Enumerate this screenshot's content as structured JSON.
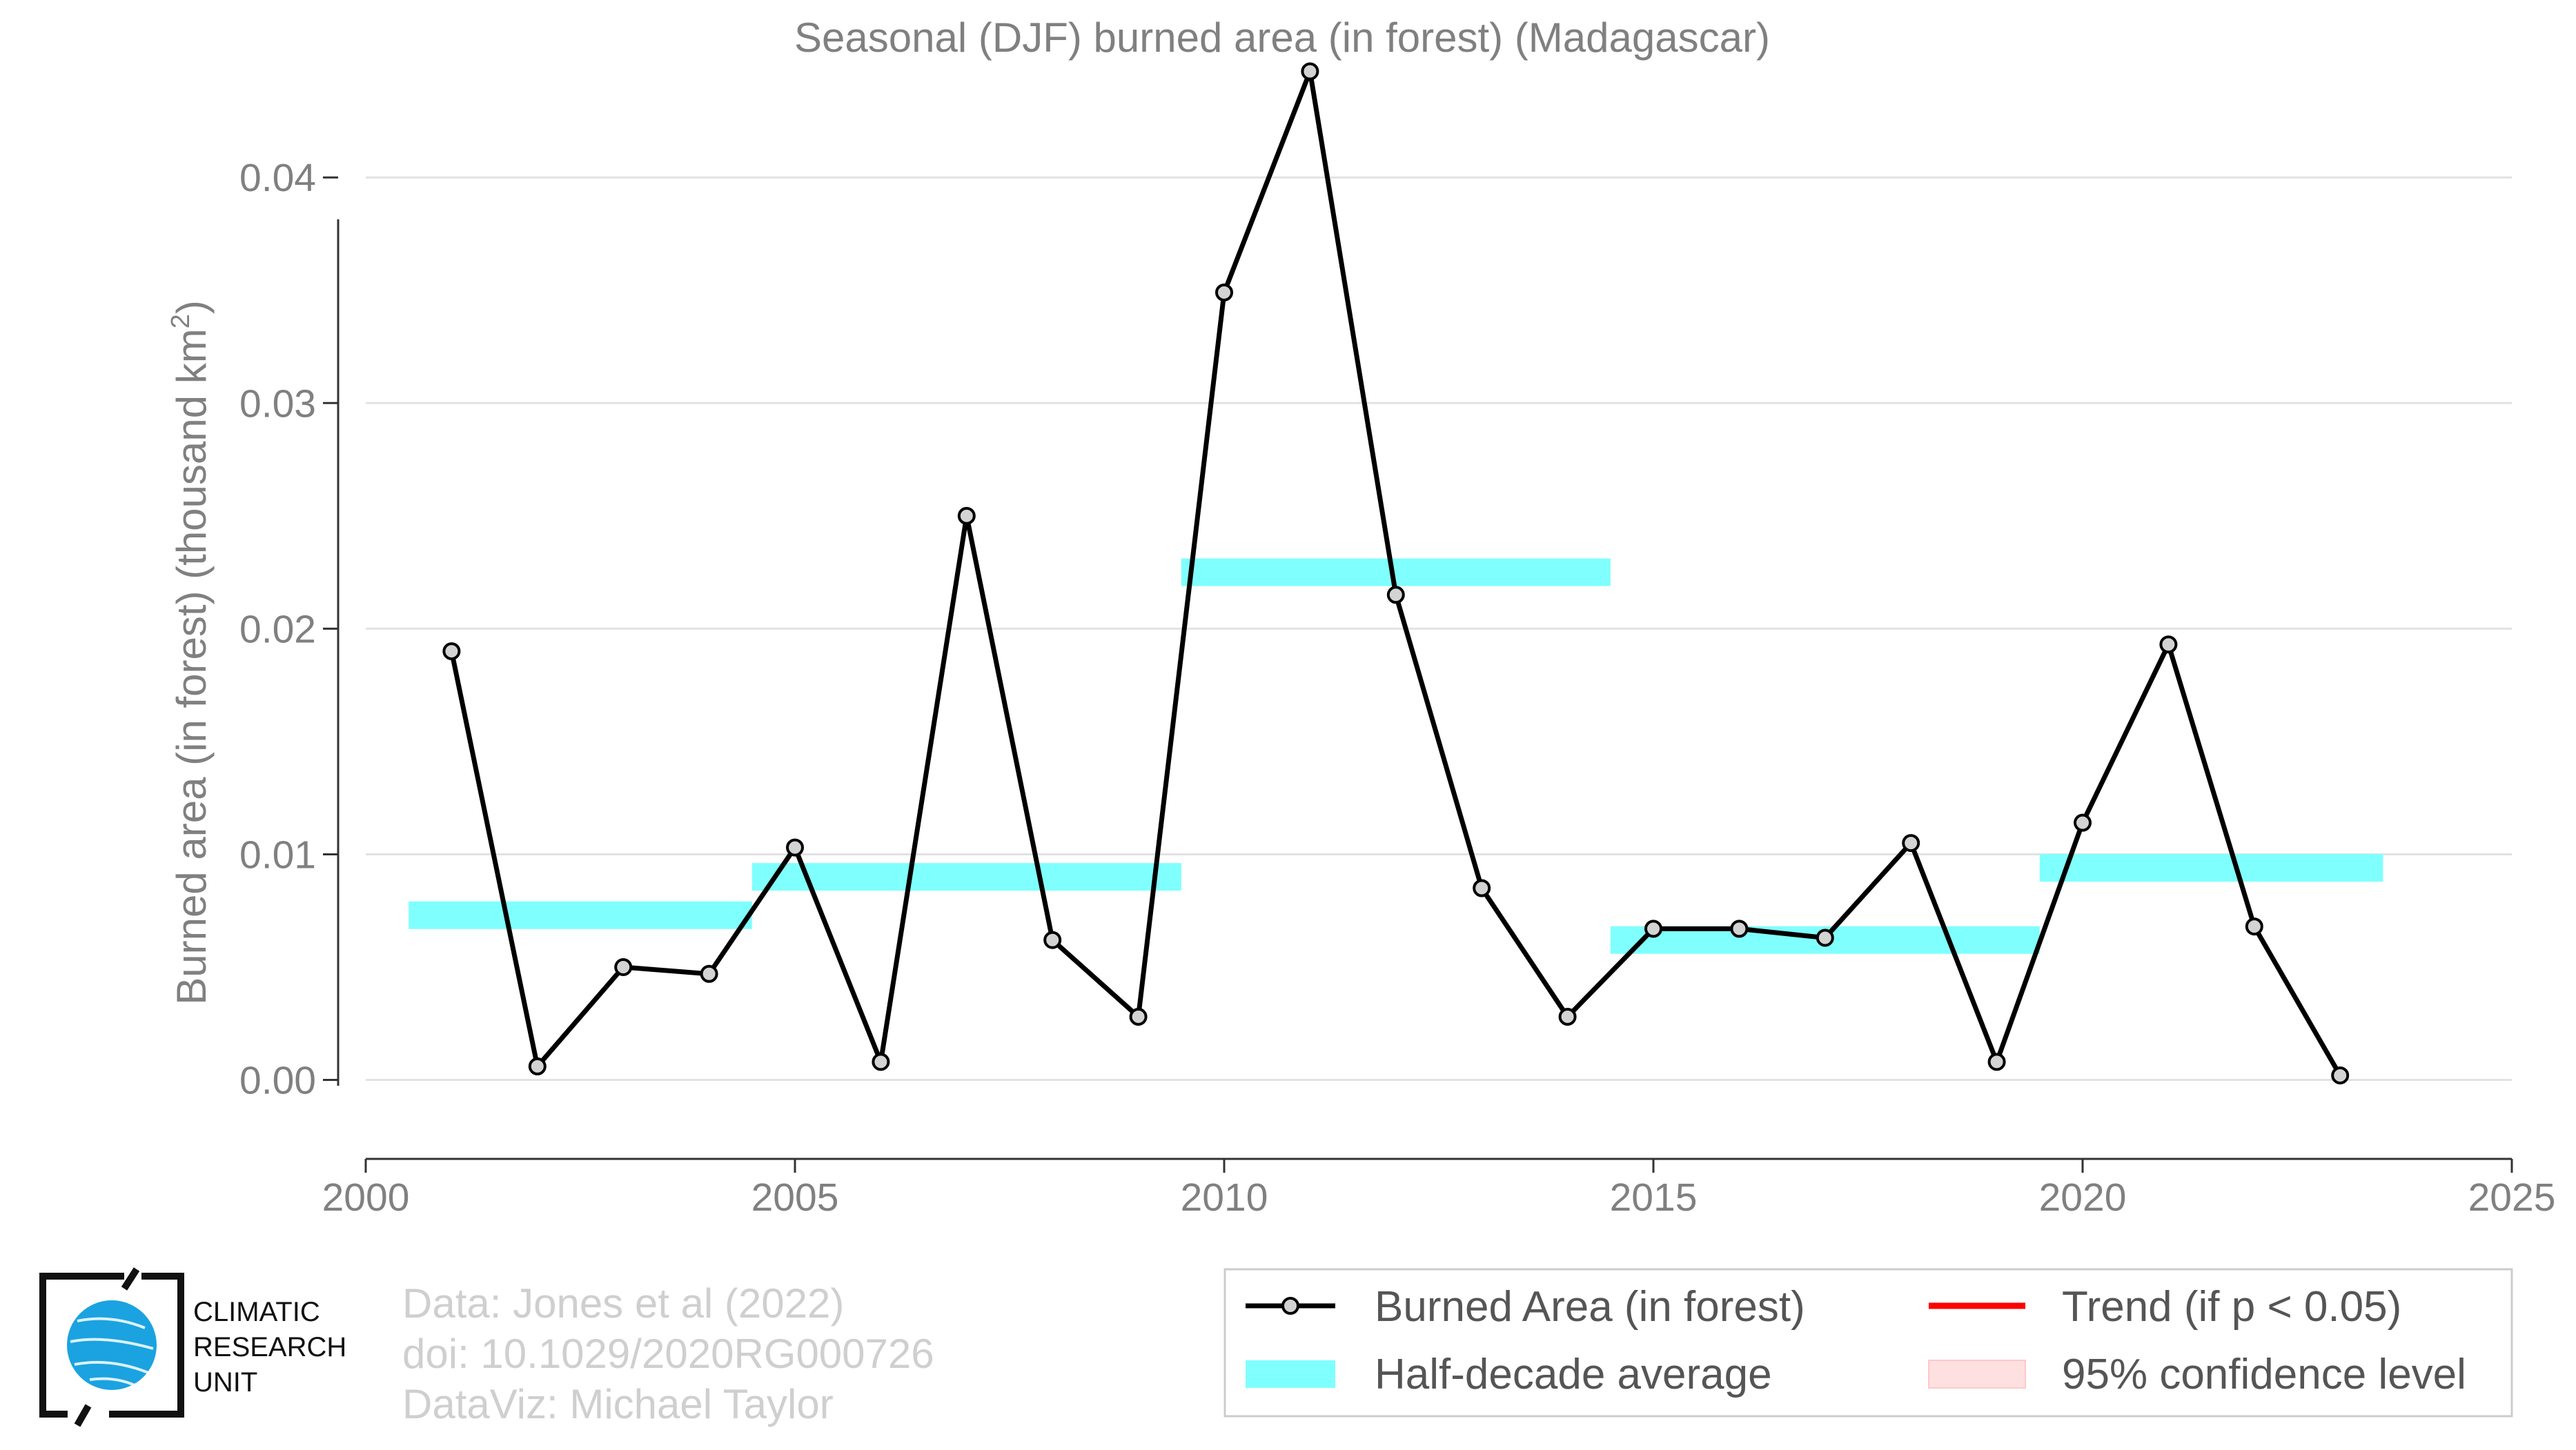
{
  "chart_data": {
    "type": "line",
    "title": "Seasonal (DJF) burned area (in forest) (Madagascar)",
    "ylabel": "Burned area (in forest) (thousand km",
    "ylabel_superscript": "2",
    "ylabel_close": ")",
    "xlabel": "",
    "xlim": [
      2000,
      2025
    ],
    "ylim": [
      -0.0035,
      0.0445
    ],
    "x_ticks": [
      "2000",
      "2005",
      "2010",
      "2015",
      "2020",
      "2025"
    ],
    "y_ticks": [
      "0.00",
      "0.01",
      "0.02",
      "0.03",
      "0.04"
    ],
    "grid": true,
    "legend_position": "bottom-right",
    "series": [
      {
        "name": "Burned Area (in forest)",
        "type": "line-markers",
        "color": "#000000",
        "marker_fill": "#d3d3d3",
        "x": [
          2001,
          2002,
          2003,
          2004,
          2005,
          2006,
          2007,
          2008,
          2009,
          2010,
          2011,
          2012,
          2013,
          2014,
          2015,
          2016,
          2017,
          2018,
          2019,
          2020,
          2021,
          2022,
          2023
        ],
        "y": [
          0.019,
          0.0006,
          0.005,
          0.0047,
          0.0103,
          0.0008,
          0.025,
          0.0062,
          0.0028,
          0.0349,
          0.0447,
          0.0215,
          0.0085,
          0.0028,
          0.0067,
          0.0067,
          0.0063,
          0.0105,
          0.0008,
          0.0114,
          0.0193,
          0.0068,
          0.0002
        ]
      },
      {
        "name": "Half-decade average",
        "type": "step-band",
        "color": "#80ffff",
        "segments": [
          {
            "x_start": 2000.5,
            "x_end": 2004.5,
            "value": 0.0073
          },
          {
            "x_start": 2004.5,
            "x_end": 2009.5,
            "value": 0.009
          },
          {
            "x_start": 2009.5,
            "x_end": 2014.5,
            "value": 0.0225
          },
          {
            "x_start": 2014.5,
            "x_end": 2019.5,
            "value": 0.0062
          },
          {
            "x_start": 2019.5,
            "x_end": 2023.5,
            "value": 0.0094
          }
        ]
      },
      {
        "name": "Trend (if p < 0.05)",
        "type": "legend-only",
        "color": "#ff0000"
      },
      {
        "name": "95% confidence level",
        "type": "legend-only",
        "color": "#ffe0e0"
      }
    ]
  },
  "legend": {
    "items": [
      "Burned Area (in forest)",
      "Trend (if p < 0.05)",
      "Half-decade average",
      "95% confidence level"
    ]
  },
  "credits": {
    "line1": "Data: Jones et al (2022)",
    "line2": "doi: 10.1029/2020RG000726",
    "line3": "DataViz: Michael Taylor"
  },
  "logo": {
    "line1": "CLIMATIC",
    "line2": "RESEARCH",
    "line3": "UNIT"
  }
}
